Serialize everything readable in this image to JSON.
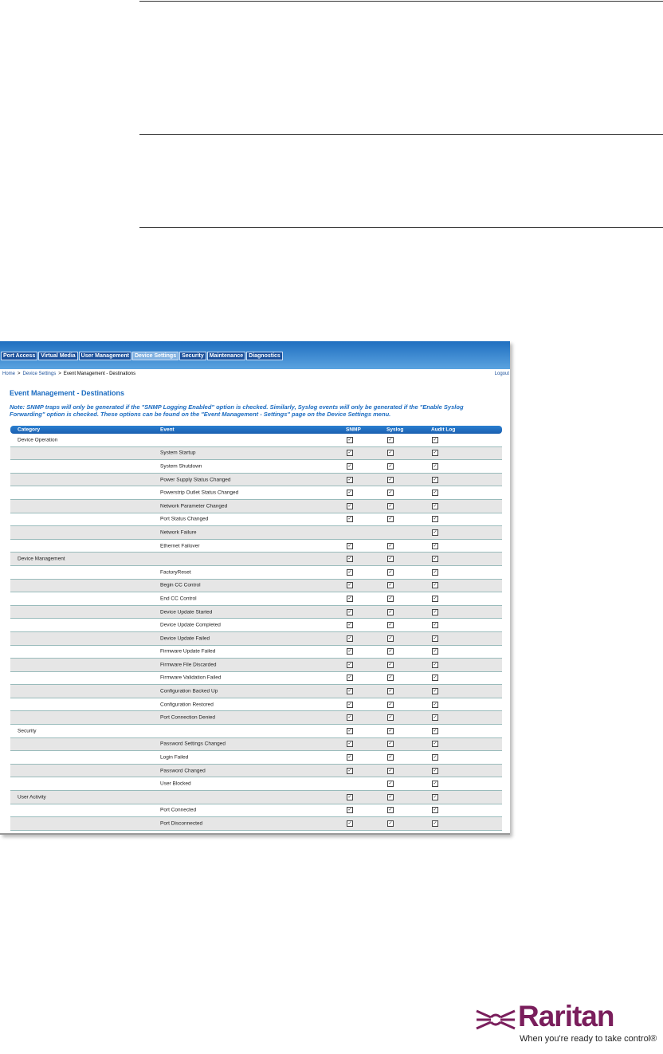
{
  "screenshot": {
    "tabs": [
      "Port Access",
      "Virtual Media",
      "User Management",
      "Device Settings",
      "Security",
      "Maintenance",
      "Diagnostics"
    ],
    "active_tab": 3,
    "breadcrumb": {
      "items": [
        "Home",
        "Device Settings",
        "Event Management - Destinations"
      ],
      "separator": ">"
    },
    "logout": "Logout",
    "title": "Event Management - Destinations",
    "note": "Note: SNMP traps will only be generated if the \"SNMP Logging Enabled\" option is checked. Similarly, Syslog events will only be generated if the \"Enable Syslog Forwarding\" option is checked. These options can be found on the \"Event Management - Settings\" page on the Device Settings menu.",
    "table": {
      "columns": [
        "Category",
        "Event",
        "SNMP",
        "Syslog",
        "Audit Log"
      ],
      "rows": [
        {
          "category": "Device Operation",
          "checks": [
            true,
            true,
            true
          ]
        },
        {
          "event": "System Startup",
          "checks": [
            true,
            true,
            true
          ]
        },
        {
          "event": "System Shutdown",
          "checks": [
            true,
            true,
            true
          ]
        },
        {
          "event": "Power Supply Status Changed",
          "checks": [
            true,
            true,
            true
          ]
        },
        {
          "event": "Powerstrip Outlet Status Changed",
          "checks": [
            true,
            true,
            true
          ]
        },
        {
          "event": "Network Parameter Changed",
          "checks": [
            true,
            true,
            true
          ]
        },
        {
          "event": "Port Status Changed",
          "checks": [
            true,
            true,
            true
          ]
        },
        {
          "event": "Network Failure",
          "checks": [
            false,
            false,
            true
          ]
        },
        {
          "event": "Ethernet Failover",
          "checks": [
            true,
            true,
            true
          ]
        },
        {
          "category": "Device Management",
          "checks": [
            true,
            true,
            true
          ]
        },
        {
          "event": "FactoryReset",
          "checks": [
            true,
            true,
            true
          ]
        },
        {
          "event": "Begin CC Control",
          "checks": [
            true,
            true,
            true
          ]
        },
        {
          "event": "End CC Control",
          "checks": [
            true,
            true,
            true
          ]
        },
        {
          "event": "Device Update Started",
          "checks": [
            true,
            true,
            true
          ]
        },
        {
          "event": "Device Update Completed",
          "checks": [
            true,
            true,
            true
          ]
        },
        {
          "event": "Device Update Failed",
          "checks": [
            true,
            true,
            true
          ]
        },
        {
          "event": "Firmware Update Failed",
          "checks": [
            true,
            true,
            true
          ]
        },
        {
          "event": "Firmware File Discarded",
          "checks": [
            true,
            true,
            true
          ]
        },
        {
          "event": "Firmware Validation Failed",
          "checks": [
            true,
            true,
            true
          ]
        },
        {
          "event": "Configuration Backed Up",
          "checks": [
            true,
            true,
            true
          ]
        },
        {
          "event": "Configuration Restored",
          "checks": [
            true,
            true,
            true
          ]
        },
        {
          "event": "Port Connection Denied",
          "checks": [
            true,
            true,
            true
          ]
        },
        {
          "category": "Security",
          "checks": [
            true,
            true,
            true
          ]
        },
        {
          "event": "Password Settings Changed",
          "checks": [
            true,
            true,
            true
          ]
        },
        {
          "event": "Login Failed",
          "checks": [
            true,
            true,
            true
          ]
        },
        {
          "event": "Password Changed",
          "checks": [
            true,
            true,
            true
          ]
        },
        {
          "event": "User Blocked",
          "checks": [
            false,
            true,
            true
          ]
        },
        {
          "category": "User Activity",
          "checks": [
            true,
            true,
            true
          ]
        },
        {
          "event": "Port Connected",
          "checks": [
            true,
            true,
            true
          ]
        },
        {
          "event": "Port Disconnected",
          "checks": [
            true,
            true,
            true
          ]
        }
      ]
    }
  },
  "logo": {
    "name": "Raritan",
    "tagline": "When you're ready to take control®"
  }
}
